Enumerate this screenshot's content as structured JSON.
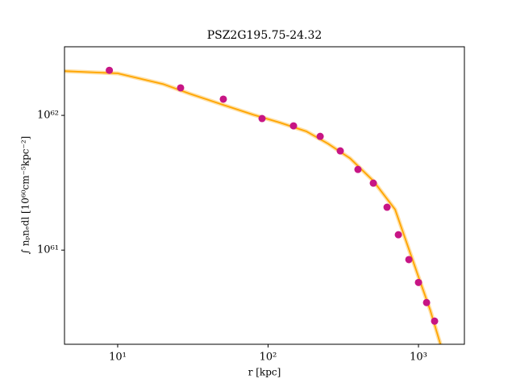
{
  "chart_data": {
    "type": "scatter",
    "title": "PSZ2G195.75-24.32",
    "x_label": "r [kpc]",
    "y_label": "∫ nₚnₑdl [10⁶⁰cm⁻⁵kpc⁻²]",
    "log_x": true,
    "log_y": true,
    "xlim": [
      4.43,
      2020
    ],
    "ylim": [
      2e+60,
      3.23e+62
    ],
    "xticks": [
      {
        "value": 10,
        "label": "10¹"
      },
      {
        "value": 100,
        "label": "10²"
      },
      {
        "value": 1000,
        "label": "10³"
      }
    ],
    "yticks": [
      {
        "value": 1e+61,
        "label": "10⁶¹"
      },
      {
        "value": 1e+62,
        "label": "10⁶²"
      }
    ],
    "series": [
      {
        "kind": "line",
        "color": "#ffa500",
        "x": [
          4.43,
          10,
          20,
          30,
          50,
          80,
          120,
          180,
          250,
          350,
          500,
          700,
          1000,
          1200,
          1400
        ],
        "values": [
          2.13e+62,
          2.05e+62,
          1.71e+62,
          1.45e+62,
          1.2e+62,
          1.01e+62,
          8.83e+61,
          7.6e+61,
          6.17e+61,
          4.81e+61,
          3.27e+61,
          2e+61,
          6.35e+60,
          3.56e+60,
          2e+60
        ]
      },
      {
        "kind": "points",
        "color": "#c71585",
        "x": [
          8.8,
          26.2,
          50.4,
          91.2,
          147.6,
          222,
          302,
          396,
          501,
          618,
          735,
          863,
          1000,
          1132,
          1280
        ],
        "values": [
          2.16e+62,
          1.6e+62,
          1.32e+62,
          9.47e+61,
          8.36e+61,
          6.98e+61,
          5.45e+61,
          3.97e+61,
          3.14e+61,
          2.08e+61,
          1.3e+61,
          8.5e+60,
          5.75e+60,
          4.08e+60,
          2.97e+60
        ]
      }
    ]
  }
}
